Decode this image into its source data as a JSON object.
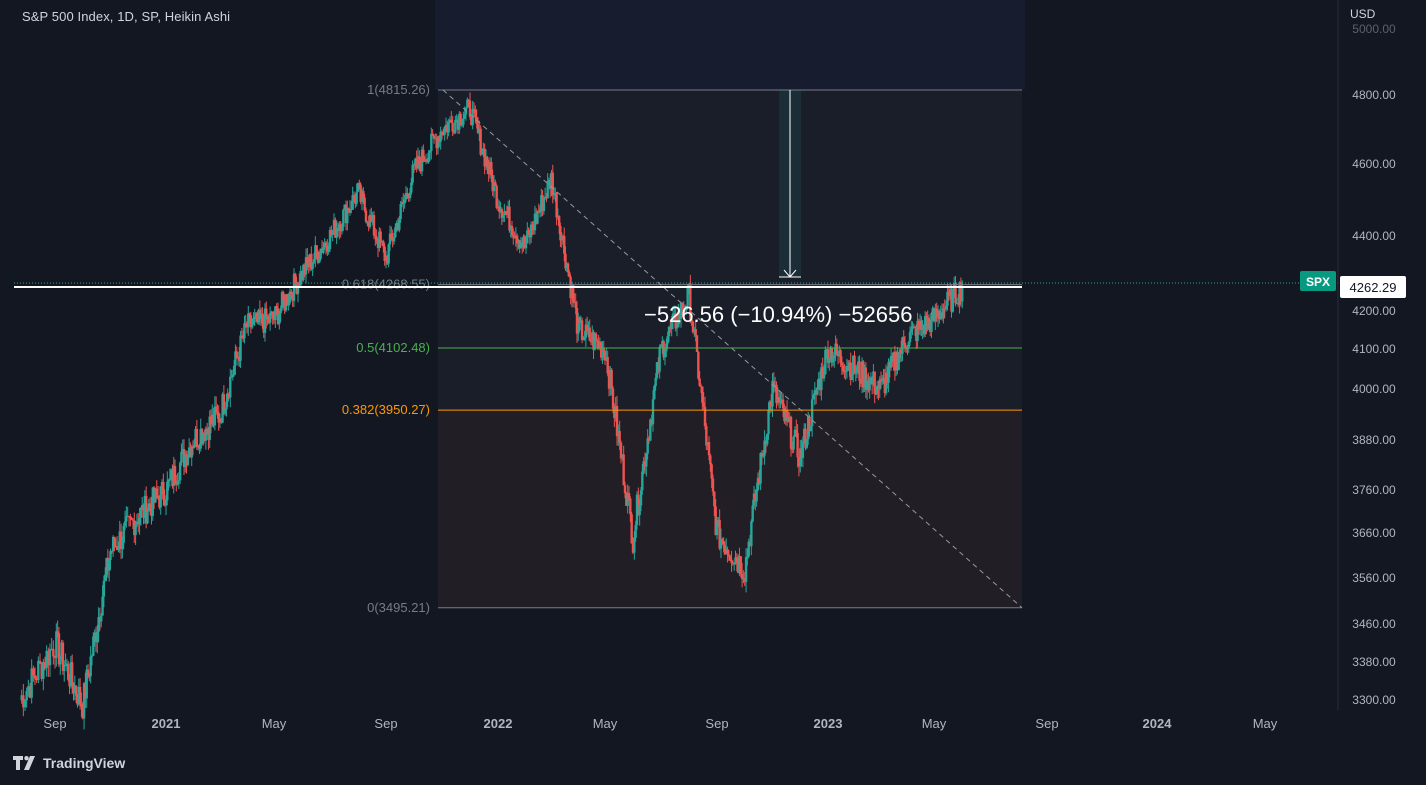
{
  "header": {
    "title": "S&P 500 Index, 1D, SP, Heikin Ashi",
    "currency": "USD"
  },
  "footer": {
    "brand": "TradingView"
  },
  "price_axis": {
    "ticks": [
      "4800.00",
      "4600.00",
      "4400.00",
      "4200.00",
      "4100.00",
      "4000.00",
      "3880.00",
      "3760.00",
      "3660.00",
      "3560.00",
      "3460.00",
      "3380.00",
      "3300.00"
    ],
    "top_partial": "5000.00"
  },
  "time_axis": {
    "labels": [
      "Sep",
      "2021",
      "May",
      "Sep",
      "2022",
      "May",
      "Sep",
      "2023",
      "May",
      "Sep",
      "2024",
      "May"
    ],
    "bold": [
      "2021",
      "2022",
      "2023",
      "2024"
    ]
  },
  "symbol_tag": {
    "label": "SPX",
    "price": "4262.29",
    "color": "#089981"
  },
  "fib": {
    "levels": [
      {
        "label": "1(4815.26)",
        "price": 4815.26,
        "color": "#787b86"
      },
      {
        "label": "0.618(4268.55)",
        "price": 4268.55,
        "color": "#787b86"
      },
      {
        "label": "0.5(4102.48)",
        "price": 4102.48,
        "color": "#4caf50"
      },
      {
        "label": "0.382(3950.27)",
        "price": 3950.27,
        "color": "#ff9800"
      },
      {
        "label": "0(3495.21)",
        "price": 3495.21,
        "color": "#787b86"
      }
    ]
  },
  "measure": {
    "label": "−526.56 (−10.94%) −52656"
  },
  "colors": {
    "up": "#26a69a",
    "down": "#ef5350",
    "bg": "#131722",
    "axis_text": "#b2b5be"
  },
  "chart_data": {
    "type": "candlestick",
    "title": "S&P 500 Index, 1D, SP, Heikin Ashi",
    "ylim": [
      3300,
      5000
    ],
    "x": [
      "2020-08",
      "2020-09",
      "2020-10",
      "2020-11",
      "2020-12",
      "2021-01",
      "2021-02",
      "2021-03",
      "2021-04",
      "2021-05",
      "2021-06",
      "2021-07",
      "2021-08",
      "2021-09",
      "2021-10",
      "2021-11",
      "2021-12",
      "2022-01",
      "2022-02",
      "2022-03",
      "2022-04",
      "2022-05",
      "2022-06",
      "2022-07",
      "2022-08",
      "2022-09",
      "2022-10",
      "2022-11",
      "2022-12",
      "2023-01",
      "2023-02",
      "2023-03",
      "2023-04",
      "2023-05",
      "2023-06"
    ],
    "close": [
      3300,
      3420,
      3290,
      3620,
      3700,
      3760,
      3880,
      3940,
      4160,
      4180,
      4300,
      4400,
      4520,
      4340,
      4580,
      4700,
      4760,
      4500,
      4370,
      4560,
      4150,
      4100,
      3650,
      4100,
      4240,
      3660,
      3580,
      4000,
      3840,
      4100,
      4050,
      4000,
      4130,
      4180,
      4262.29
    ]
  }
}
